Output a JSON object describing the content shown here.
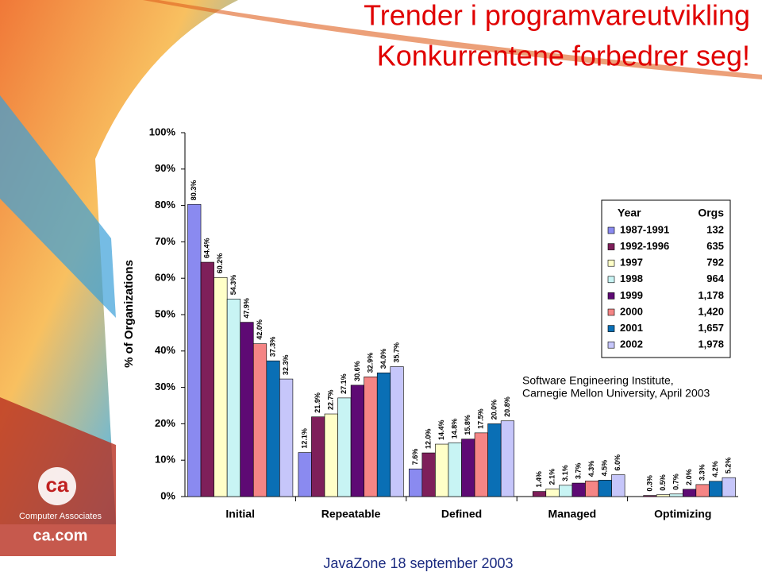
{
  "slide": {
    "title_lines": [
      "Trender i programvareutvikling",
      "Konkurrentene forbedrer seg!"
    ],
    "source_lines": [
      "Software Engineering Institute,",
      "Carnegie Mellon University, April 2003"
    ],
    "footer": "JavaZone 18 september 2003",
    "logo": {
      "mark": "ca",
      "company": "Computer Associates",
      "url": "ca.com"
    }
  },
  "chart_data": {
    "type": "bar",
    "y_label": "% of Organizations",
    "categories": [
      "Initial",
      "Repeatable",
      "Defined",
      "Managed",
      "Optimizing"
    ],
    "legend": {
      "headers": [
        "Year",
        "Orgs"
      ]
    },
    "series": [
      {
        "name": "1987-1991",
        "orgs": "132",
        "color": "#8a8af0",
        "values": [
          80.3,
          12.1,
          7.6,
          null,
          null
        ],
        "value_labels": [
          "80.3%",
          "12.1%",
          "7.6%",
          null,
          null
        ]
      },
      {
        "name": "1992-1996",
        "orgs": "635",
        "color": "#7e1f5a",
        "values": [
          64.4,
          21.9,
          12.0,
          1.4,
          0.3
        ],
        "value_labels": [
          "64.4%",
          "21.9%",
          "12.0%",
          "1.4%",
          "0.3%"
        ]
      },
      {
        "name": "1997",
        "orgs": "792",
        "color": "#ffffc8",
        "values": [
          60.2,
          22.7,
          14.4,
          2.1,
          0.5
        ],
        "value_labels": [
          "60.2%",
          "22.7%",
          "14.4%",
          "2.1%",
          "0.5%"
        ]
      },
      {
        "name": "1998",
        "orgs": "964",
        "color": "#c8f4f4",
        "values": [
          54.3,
          27.1,
          14.8,
          3.1,
          0.7
        ],
        "value_labels": [
          "54.3%",
          "27.1%",
          "14.8%",
          "3.1%",
          "0.7%"
        ]
      },
      {
        "name": "1999",
        "orgs": "1,178",
        "color": "#5e0a74",
        "values": [
          47.9,
          30.6,
          15.8,
          3.7,
          2.0
        ],
        "value_labels": [
          "47.9%",
          "30.6%",
          "15.8%",
          "3.7%",
          "2.0%"
        ]
      },
      {
        "name": "2000",
        "orgs": "1,420",
        "color": "#f58585",
        "values": [
          42.0,
          32.9,
          17.5,
          4.3,
          3.3
        ],
        "value_labels": [
          "42.0%",
          "32.9%",
          "17.5%",
          "4.3%",
          "3.3%"
        ]
      },
      {
        "name": "2001",
        "orgs": "1,657",
        "color": "#0a6fb5",
        "values": [
          37.3,
          34.0,
          20.0,
          4.5,
          4.2
        ],
        "value_labels": [
          "37.3%",
          "34.0%",
          "20.0%",
          "4.5%",
          "4.2%"
        ]
      },
      {
        "name": "2002",
        "orgs": "1,978",
        "color": "#c6c6fa",
        "values": [
          32.3,
          35.7,
          20.8,
          6.0,
          5.2
        ],
        "value_labels": [
          "32.3%",
          "35.7%",
          "20.8%",
          "6.0%",
          "5.2%"
        ]
      }
    ],
    "ylim": [
      0,
      100
    ],
    "yticks": [
      {
        "value": 0,
        "label": "0%"
      },
      {
        "value": 10,
        "label": "10%"
      },
      {
        "value": 20,
        "label": "20%"
      },
      {
        "value": 30,
        "label": "30%"
      },
      {
        "value": 40,
        "label": "40%"
      },
      {
        "value": 50,
        "label": "50%"
      },
      {
        "value": 60,
        "label": "60%"
      },
      {
        "value": 70,
        "label": "70%"
      },
      {
        "value": 80,
        "label": "80%"
      },
      {
        "value": 90,
        "label": "90%"
      },
      {
        "value": 100,
        "label": "100%"
      }
    ],
    "grid": false
  }
}
